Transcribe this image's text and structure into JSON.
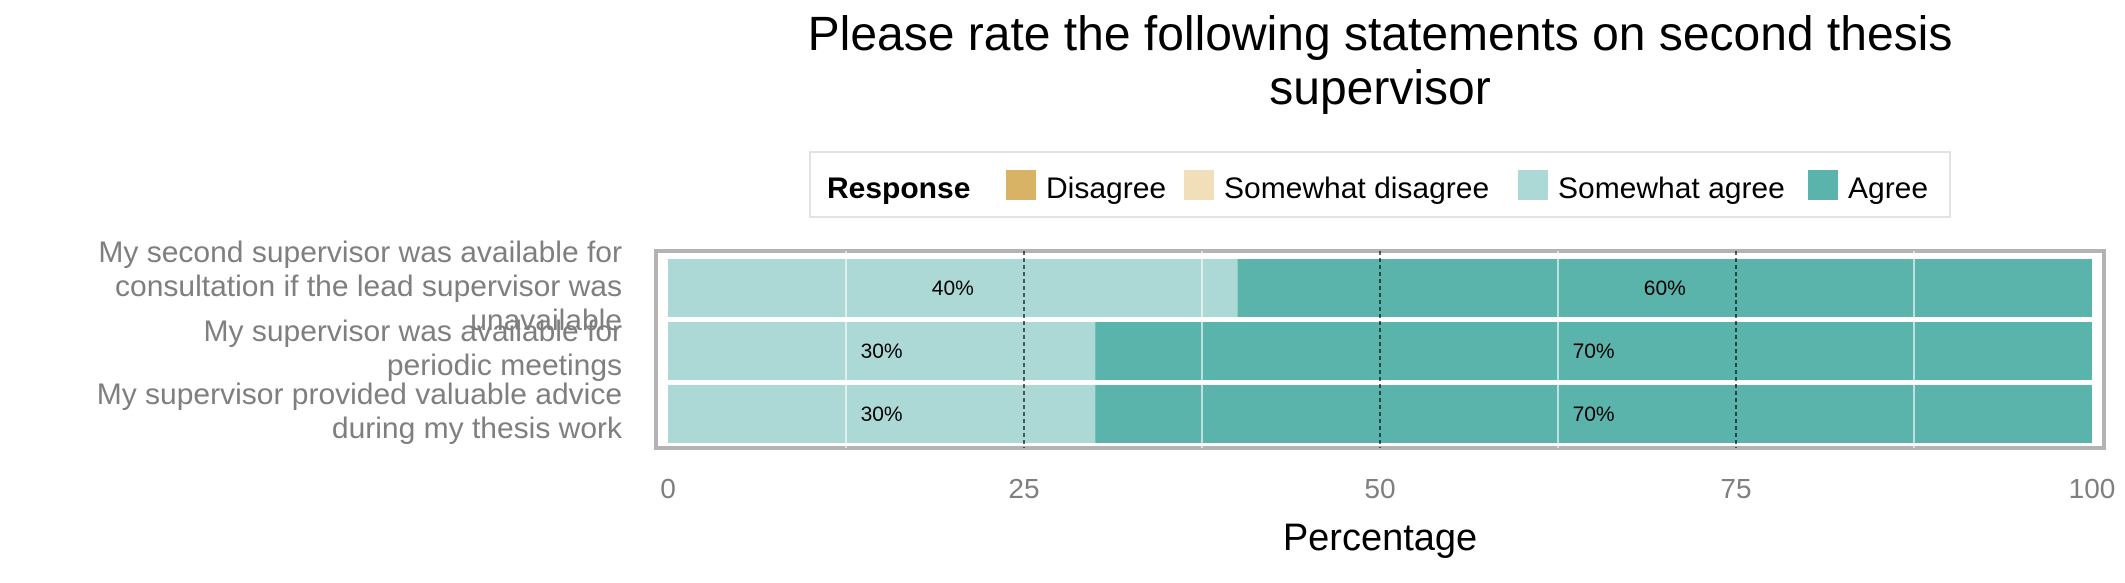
{
  "chart_data": {
    "type": "bar",
    "orientation": "horizontal",
    "stacked": true,
    "title_lines": [
      "Please rate the following statements on second thesis",
      "supervisor"
    ],
    "xlabel": "Percentage",
    "ylabel": "",
    "xlim": [
      0,
      100
    ],
    "x_ticks": [
      "0",
      "25",
      "50",
      "75",
      "100"
    ],
    "legend": {
      "title": "Response",
      "position": "top",
      "entries": [
        {
          "name": "Disagree",
          "color": "#d8b365"
        },
        {
          "name": "Somewhat disagree",
          "color": "#f0dfb8"
        },
        {
          "name": "Somewhat agree",
          "color": "#acd9d5"
        },
        {
          "name": "Agree",
          "color": "#5ab4ac"
        }
      ]
    },
    "categories": [
      {
        "lines": [
          "My second supervisor was available for",
          "consultation if the lead supervisor was",
          "unavailable"
        ]
      },
      {
        "lines": [
          "My supervisor was available for",
          "periodic meetings"
        ]
      },
      {
        "lines": [
          "My supervisor provided valuable advice",
          "during my thesis work"
        ]
      }
    ],
    "series": [
      {
        "name": "Disagree",
        "color": "#d8b365",
        "values": [
          0,
          0,
          0
        ]
      },
      {
        "name": "Somewhat disagree",
        "color": "#f0dfb8",
        "values": [
          0,
          0,
          0
        ]
      },
      {
        "name": "Somewhat agree",
        "color": "#acd9d5",
        "values": [
          40,
          30,
          30
        ],
        "labels": [
          "40%",
          "30%",
          "30%"
        ]
      },
      {
        "name": "Agree",
        "color": "#5ab4ac",
        "values": [
          60,
          70,
          70
        ],
        "labels": [
          "60%",
          "70%",
          "70%"
        ]
      }
    ],
    "reference_lines_x": [
      25,
      50,
      75
    ],
    "grid": true
  }
}
